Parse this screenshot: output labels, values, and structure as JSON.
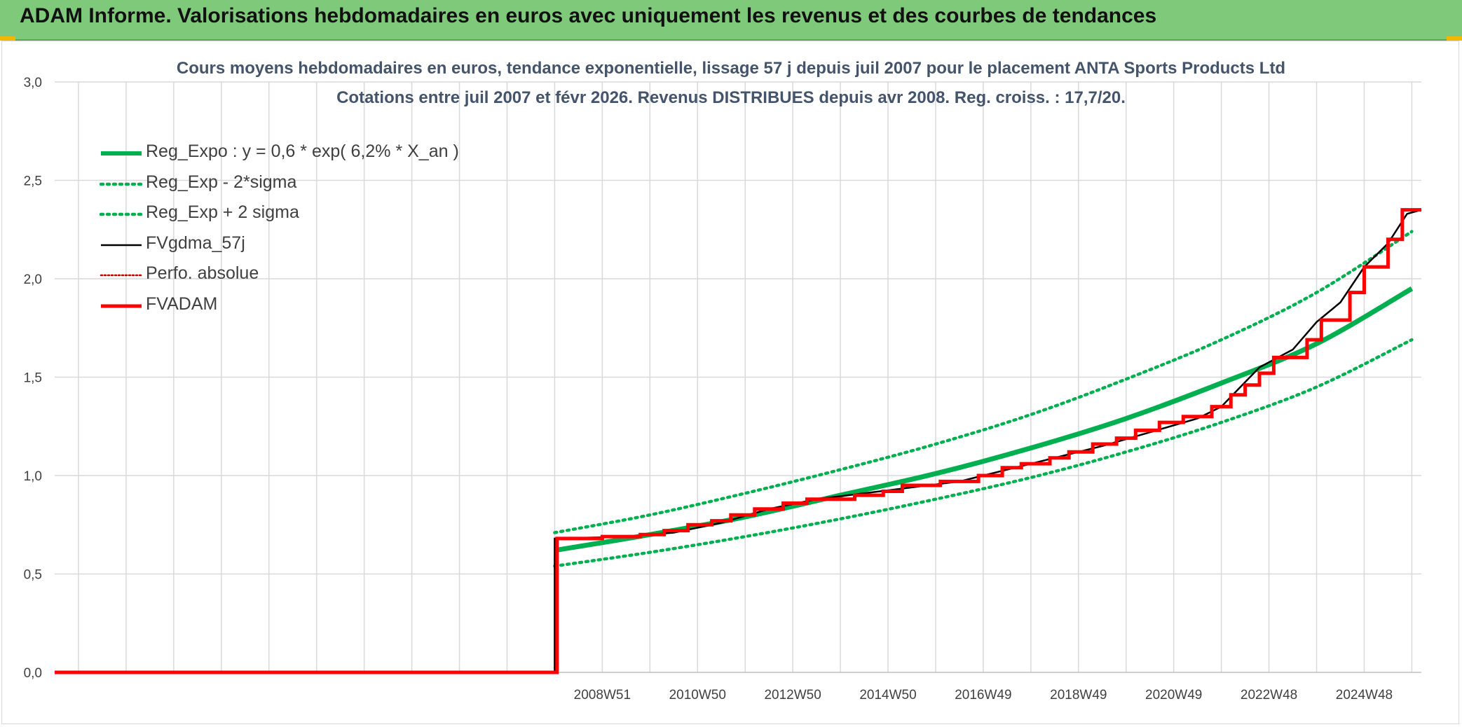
{
  "banner": {
    "title": "ADAM Informe. Valorisations hebdomadaires en euros avec uniquement les revenus et des courbes de tendances"
  },
  "colors": {
    "banner_bg": "#7fc97a",
    "trend_green": "#00b050",
    "fvadam_red": "#ff0000",
    "fvgdma_black": "#000000",
    "perfo_red": "#c00000",
    "title_text": "#44546a",
    "axis_text": "#404040",
    "grid": "#d9d9d9"
  },
  "chart_data": {
    "type": "line",
    "title": "Cours moyens hebdomadaires en euros, tendance exponentielle, lissage 57 j depuis juil 2007 pour le placement ANTA Sports Products Ltd",
    "subtitle": "Cotations entre juil 2007 et févr 2026. Revenus DISTRIBUES depuis avr 2008. Reg. croiss. : 17,7/20.",
    "xlabel": "",
    "ylabel": "",
    "ylim": [
      0,
      3
    ],
    "y_ticks": [
      "0,0",
      "0,5",
      "1,0",
      "1,5",
      "2,0",
      "2,5",
      "3,0"
    ],
    "xlim": [
      1997.5,
      2026.2
    ],
    "x_ticks": [
      {
        "label": "2008W51",
        "x": 2009.0
      },
      {
        "label": "2010W50",
        "x": 2011.0
      },
      {
        "label": "2012W50",
        "x": 2013.0
      },
      {
        "label": "2014W50",
        "x": 2015.0
      },
      {
        "label": "2016W49",
        "x": 2017.0
      },
      {
        "label": "2018W49",
        "x": 2019.0
      },
      {
        "label": "2020W49",
        "x": 2021.0
      },
      {
        "label": "2022W48",
        "x": 2023.0
      },
      {
        "label": "2024W48",
        "x": 2025.0
      }
    ],
    "grid": true,
    "legend_position": "top-left",
    "series": [
      {
        "name": "Reg_Expo : y = 0,6 * exp( 6,2% *  X_an )",
        "style": "solid-thick",
        "color": "#00b050",
        "points": [
          [
            2008.0,
            0.62
          ],
          [
            2010.0,
            0.7
          ],
          [
            2012.0,
            0.79
          ],
          [
            2014.0,
            0.9
          ],
          [
            2016.0,
            1.01
          ],
          [
            2018.0,
            1.14
          ],
          [
            2020.0,
            1.29
          ],
          [
            2022.0,
            1.47
          ],
          [
            2024.0,
            1.67
          ],
          [
            2026.0,
            1.95
          ]
        ]
      },
      {
        "name": "Reg_Exp - 2*sigma",
        "style": "dotted",
        "color": "#00b050",
        "points": [
          [
            2008.0,
            0.54
          ],
          [
            2010.0,
            0.61
          ],
          [
            2012.0,
            0.69
          ],
          [
            2014.0,
            0.78
          ],
          [
            2016.0,
            0.88
          ],
          [
            2018.0,
            0.99
          ],
          [
            2020.0,
            1.12
          ],
          [
            2022.0,
            1.27
          ],
          [
            2024.0,
            1.45
          ],
          [
            2026.0,
            1.69
          ]
        ]
      },
      {
        "name": "Reg_Exp + 2 sigma",
        "style": "dotted",
        "color": "#00b050",
        "points": [
          [
            2008.0,
            0.71
          ],
          [
            2010.0,
            0.8
          ],
          [
            2012.0,
            0.91
          ],
          [
            2014.0,
            1.03
          ],
          [
            2016.0,
            1.16
          ],
          [
            2018.0,
            1.31
          ],
          [
            2020.0,
            1.49
          ],
          [
            2022.0,
            1.69
          ],
          [
            2024.0,
            1.93
          ],
          [
            2026.0,
            2.24
          ]
        ]
      },
      {
        "name": "FVgdma_57j",
        "style": "solid-thin",
        "color": "#000000",
        "points": [
          [
            1997.5,
            0.0
          ],
          [
            2008.0,
            0.0
          ],
          [
            2008.0,
            0.68
          ],
          [
            2009.5,
            0.69
          ],
          [
            2010.5,
            0.71
          ],
          [
            2011.5,
            0.76
          ],
          [
            2012.5,
            0.83
          ],
          [
            2013.5,
            0.88
          ],
          [
            2014.5,
            0.91
          ],
          [
            2015.5,
            0.94
          ],
          [
            2016.5,
            0.97
          ],
          [
            2017.5,
            1.03
          ],
          [
            2018.5,
            1.09
          ],
          [
            2019.5,
            1.15
          ],
          [
            2020.5,
            1.22
          ],
          [
            2021.5,
            1.29
          ],
          [
            2022.0,
            1.35
          ],
          [
            2022.8,
            1.55
          ],
          [
            2023.5,
            1.64
          ],
          [
            2024.0,
            1.78
          ],
          [
            2024.5,
            1.88
          ],
          [
            2025.0,
            2.06
          ],
          [
            2025.5,
            2.18
          ],
          [
            2025.9,
            2.33
          ],
          [
            2026.2,
            2.35
          ]
        ]
      },
      {
        "name": "Perfo. absolue",
        "style": "dotted-thin",
        "color": "#c00000",
        "points": []
      },
      {
        "name": "FVADAM",
        "style": "step-thick",
        "color": "#ff0000",
        "points": [
          [
            1997.5,
            0.0
          ],
          [
            2008.05,
            0.0
          ],
          [
            2008.05,
            0.68
          ],
          [
            2009.0,
            0.69
          ],
          [
            2009.8,
            0.7
          ],
          [
            2010.3,
            0.72
          ],
          [
            2010.8,
            0.75
          ],
          [
            2011.3,
            0.77
          ],
          [
            2011.7,
            0.8
          ],
          [
            2012.2,
            0.83
          ],
          [
            2012.8,
            0.86
          ],
          [
            2013.3,
            0.88
          ],
          [
            2014.3,
            0.9
          ],
          [
            2014.9,
            0.92
          ],
          [
            2015.3,
            0.95
          ],
          [
            2016.1,
            0.97
          ],
          [
            2016.9,
            1.0
          ],
          [
            2017.4,
            1.04
          ],
          [
            2017.8,
            1.06
          ],
          [
            2018.4,
            1.09
          ],
          [
            2018.8,
            1.12
          ],
          [
            2019.3,
            1.16
          ],
          [
            2019.8,
            1.19
          ],
          [
            2020.2,
            1.23
          ],
          [
            2020.7,
            1.27
          ],
          [
            2021.2,
            1.3
          ],
          [
            2021.8,
            1.35
          ],
          [
            2022.2,
            1.41
          ],
          [
            2022.5,
            1.46
          ],
          [
            2022.8,
            1.52
          ],
          [
            2023.1,
            1.6
          ],
          [
            2023.8,
            1.69
          ],
          [
            2024.1,
            1.79
          ],
          [
            2024.7,
            1.93
          ],
          [
            2025.0,
            2.06
          ],
          [
            2025.5,
            2.2
          ],
          [
            2025.8,
            2.35
          ],
          [
            2026.2,
            2.35
          ]
        ]
      }
    ]
  }
}
